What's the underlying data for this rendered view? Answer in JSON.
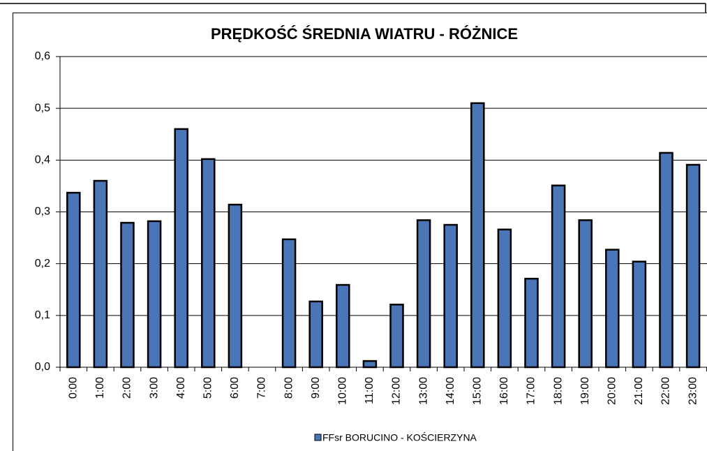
{
  "chart_data": {
    "type": "bar",
    "title": "PRĘDKOŚĆ ŚREDNIA WIATRU -  RÓŻNICE",
    "categories": [
      "0:00",
      "1:00",
      "2:00",
      "3:00",
      "4:00",
      "5:00",
      "6:00",
      "7:00",
      "8:00",
      "9:00",
      "10:00",
      "11:00",
      "12:00",
      "13:00",
      "14:00",
      "15:00",
      "16:00",
      "17:00",
      "18:00",
      "19:00",
      "20:00",
      "21:00",
      "22:00",
      "23:00"
    ],
    "series": [
      {
        "name": "FFsr BORUCINO  - KOŚCIERZYNA",
        "color": "#4a76b8",
        "values": [
          0.337,
          0.36,
          0.279,
          0.282,
          0.46,
          0.402,
          0.314,
          null,
          0.247,
          0.127,
          0.159,
          0.012,
          0.121,
          0.284,
          0.275,
          0.51,
          0.266,
          0.171,
          0.351,
          0.284,
          0.227,
          0.204,
          0.414,
          0.391
        ]
      }
    ],
    "ylim": [
      0,
      0.6
    ],
    "yticks": [
      {
        "value": 0,
        "label": "0,0"
      },
      {
        "value": 0.1,
        "label": "0,1"
      },
      {
        "value": 0.2,
        "label": "0,2"
      },
      {
        "value": 0.3,
        "label": "0,3"
      },
      {
        "value": 0.4,
        "label": "0,4"
      },
      {
        "value": 0.5,
        "label": "0,5"
      },
      {
        "value": 0.6,
        "label": "0,6"
      }
    ],
    "grid": true,
    "legend": "bottom"
  }
}
